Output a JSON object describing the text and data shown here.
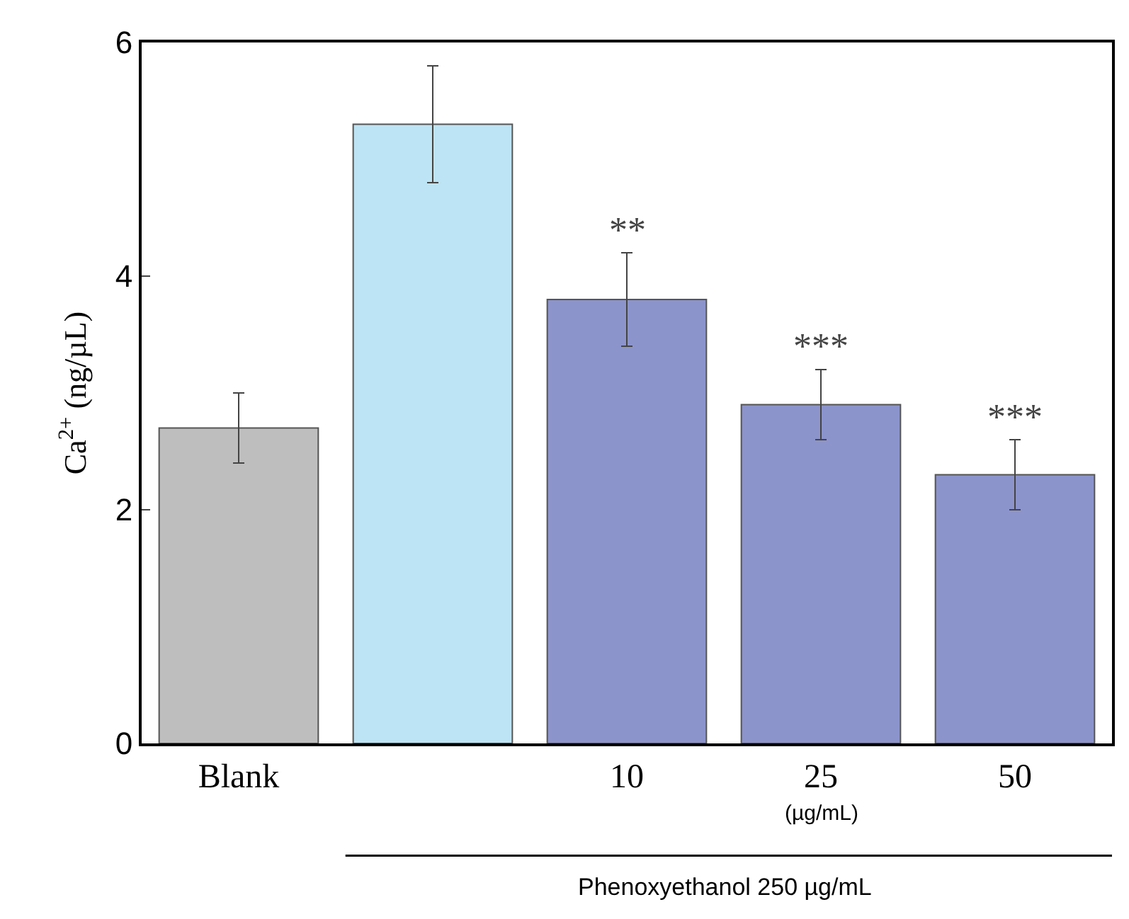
{
  "chart_data": {
    "type": "bar",
    "ylabel": "Ca$^{2+}$ (ng/µL)",
    "categories": [
      "Blank",
      null,
      "10",
      "25",
      "50"
    ],
    "values": [
      2.7,
      5.3,
      3.8,
      2.9,
      2.3
    ],
    "errors": [
      0.3,
      0.5,
      0.4,
      0.3,
      0.3
    ],
    "colors": [
      "#bebebe",
      "#bde4f4",
      "#8c94cc",
      "#8c94cc",
      "#8c94cc"
    ],
    "ylim": [
      0,
      6
    ],
    "yticks": [
      0,
      2,
      4,
      6
    ],
    "grid": false,
    "annotations": [
      {
        "text": "**",
        "x": "10",
        "y": 4.2
      },
      {
        "text": "***",
        "x": "25",
        "y": 3.2
      },
      {
        "text": "***",
        "x": "50",
        "y": 2.6
      },
      "(µg/mL)",
      "Phenoxyethanol 250 µg/mL"
    ]
  }
}
